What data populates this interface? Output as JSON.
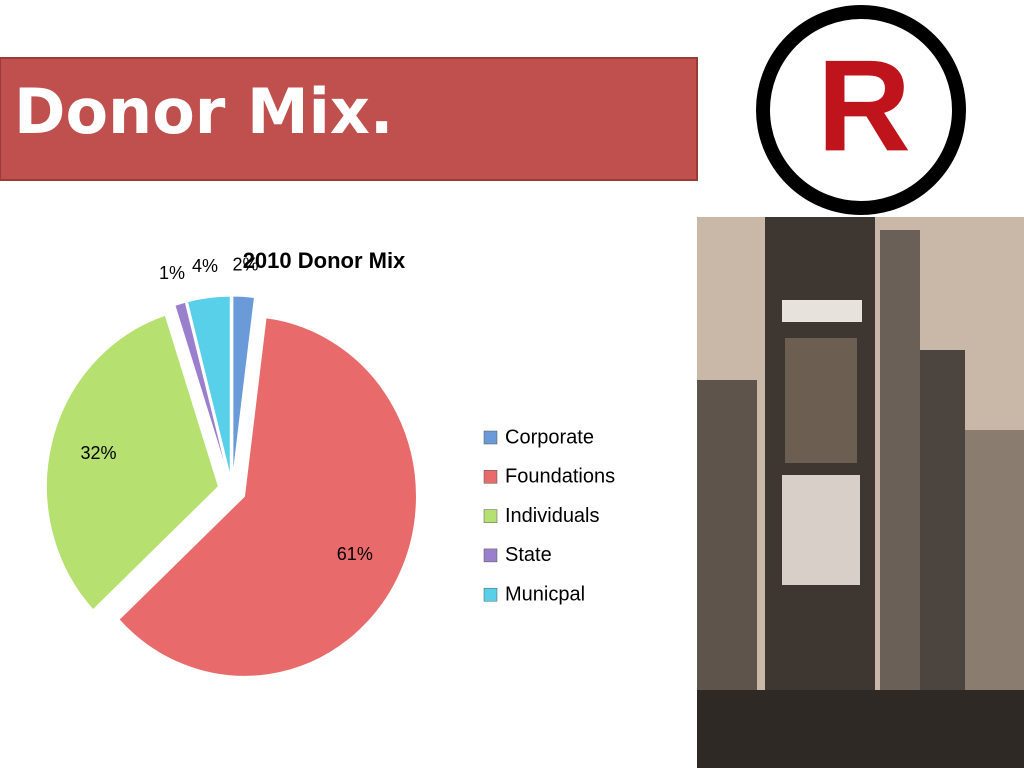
{
  "header": {
    "title": "Donor Mix."
  },
  "logo": {
    "letter": "R"
  },
  "chart_data": {
    "type": "pie",
    "title": "2010 Donor Mix",
    "categories": [
      "Corporate",
      "Foundations",
      "Individuals",
      "State",
      "Municpal"
    ],
    "values": [
      2,
      61,
      32,
      1,
      4
    ],
    "value_labels": [
      "2%",
      "61%",
      "32%",
      "1%",
      "4%"
    ],
    "colors": [
      "#6a9ad8",
      "#e86a6a",
      "#b6e070",
      "#9a80cc",
      "#58d0ea"
    ],
    "legend": "right"
  }
}
